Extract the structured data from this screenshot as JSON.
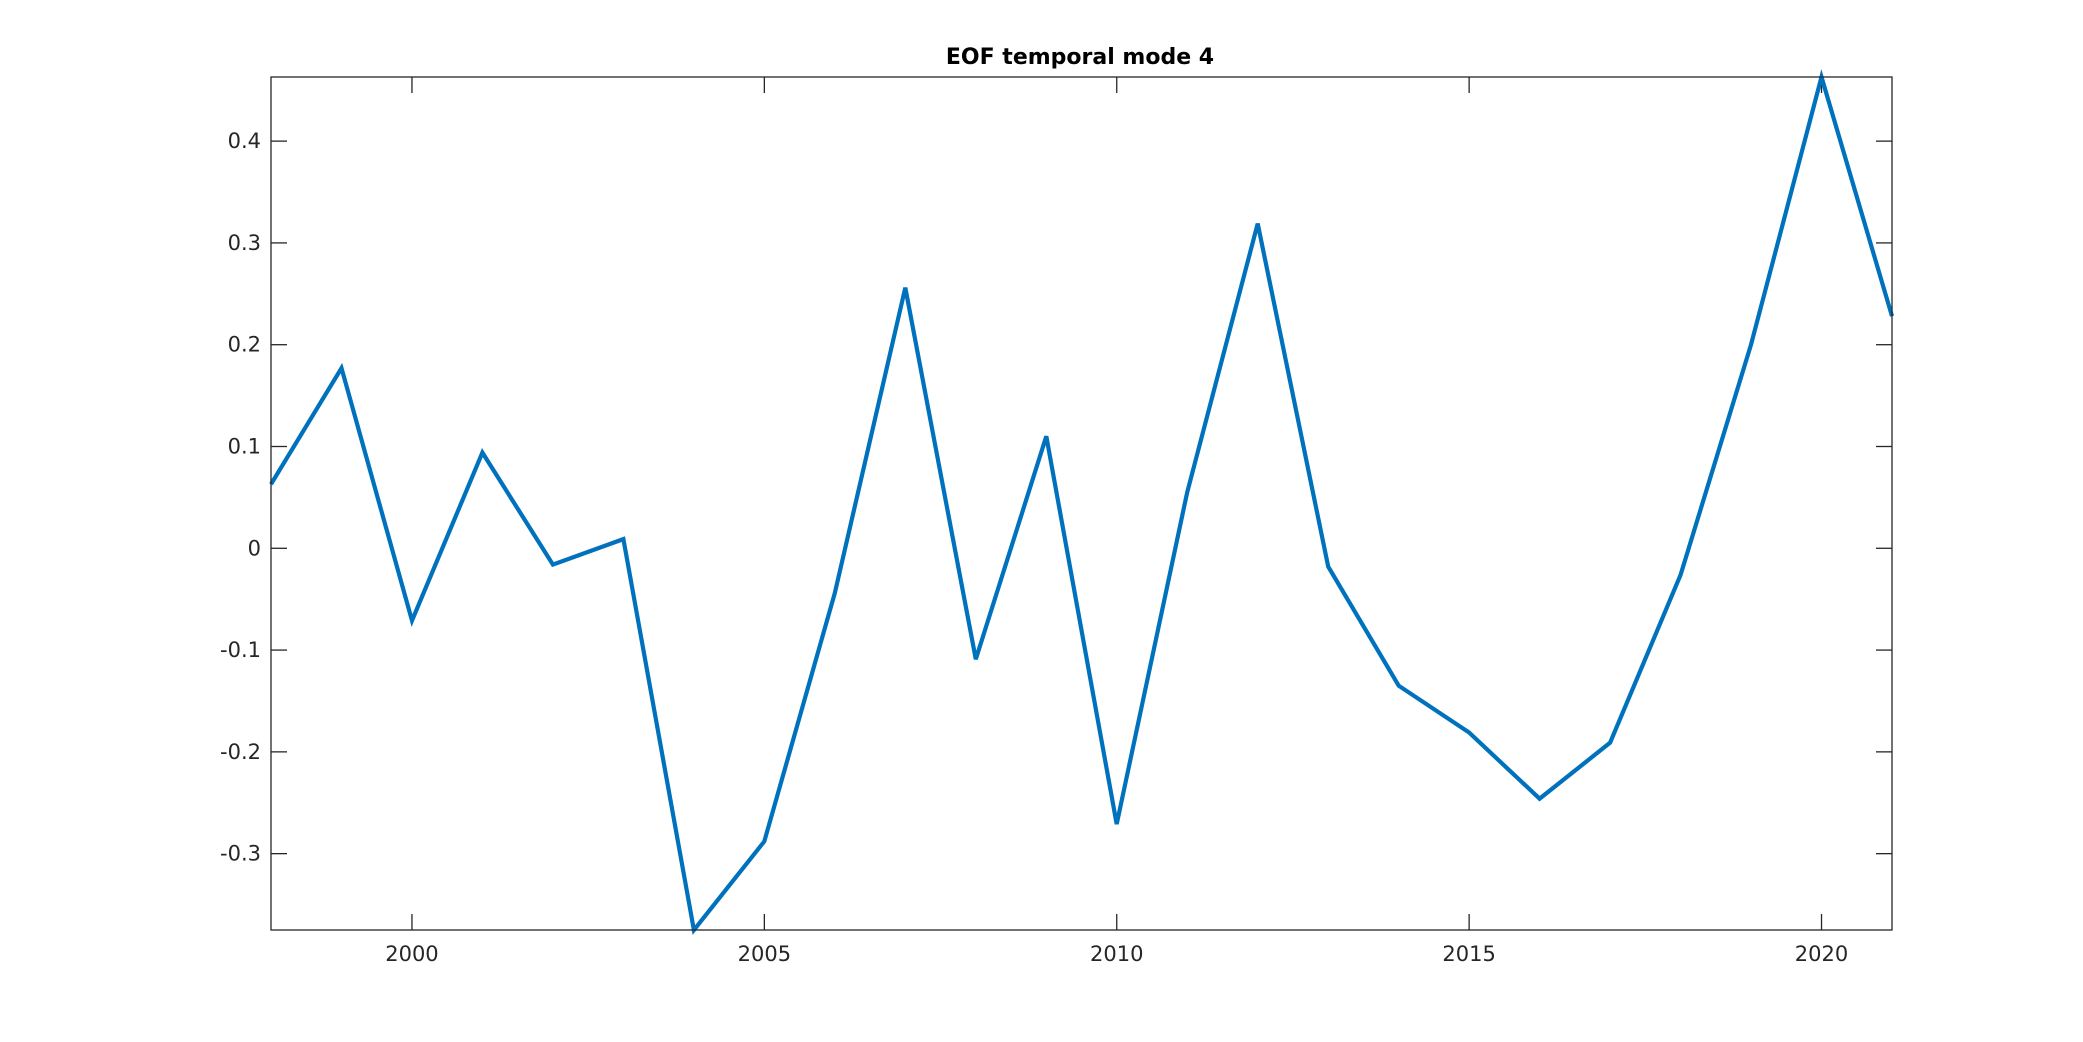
{
  "chart_data": {
    "type": "line",
    "title": "EOF temporal mode 4",
    "xlabel": "",
    "ylabel": "",
    "xlim": [
      1998,
      2021
    ],
    "ylim": [
      -0.375,
      0.463
    ],
    "grid": false,
    "x_ticks": [
      2000,
      2005,
      2010,
      2015,
      2020
    ],
    "x_tick_labels": [
      "2000",
      "2005",
      "2010",
      "2015",
      "2020"
    ],
    "y_ticks": [
      -0.3,
      -0.2,
      -0.1,
      0,
      0.1,
      0.2,
      0.3,
      0.4
    ],
    "y_tick_labels": [
      "-0.3",
      "-0.2",
      "-0.1",
      "0",
      "0.1",
      "0.2",
      "0.3",
      "0.4"
    ],
    "x": [
      1998,
      1999,
      2000,
      2001,
      2002,
      2003,
      2004,
      2005,
      2006,
      2007,
      2008,
      2009,
      2010,
      2011,
      2012,
      2013,
      2014,
      2015,
      2016,
      2017,
      2018,
      2019,
      2020,
      2021
    ],
    "series": [
      {
        "color": "#0072BD",
        "values": [
          0.063,
          0.177,
          -0.071,
          0.094,
          -0.016,
          0.009,
          -0.375,
          -0.288,
          -0.044,
          0.256,
          -0.109,
          0.11,
          -0.271,
          0.055,
          0.319,
          -0.018,
          -0.135,
          -0.181,
          -0.246,
          -0.191,
          -0.026,
          0.2,
          0.463,
          0.228
        ]
      }
    ]
  }
}
